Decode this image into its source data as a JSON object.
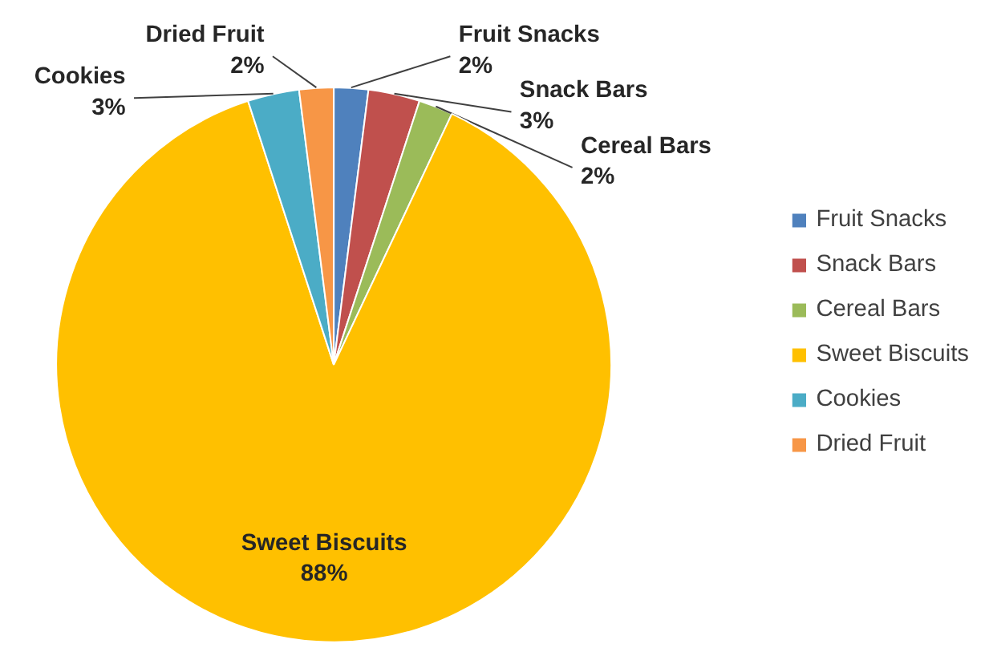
{
  "chart_data": {
    "type": "pie",
    "categories": [
      "Fruit Snacks",
      "Snack Bars",
      "Cereal Bars",
      "Sweet Biscuits",
      "Cookies",
      "Dried Fruit"
    ],
    "values": [
      2,
      3,
      2,
      88,
      3,
      2
    ],
    "value_labels": [
      "2%",
      "3%",
      "2%",
      "88%",
      "3%",
      "2%"
    ],
    "colors": [
      "#4f81bd",
      "#c0504d",
      "#9bbb59",
      "#ffc000",
      "#4bacc6",
      "#f79646"
    ],
    "legend": "right"
  }
}
